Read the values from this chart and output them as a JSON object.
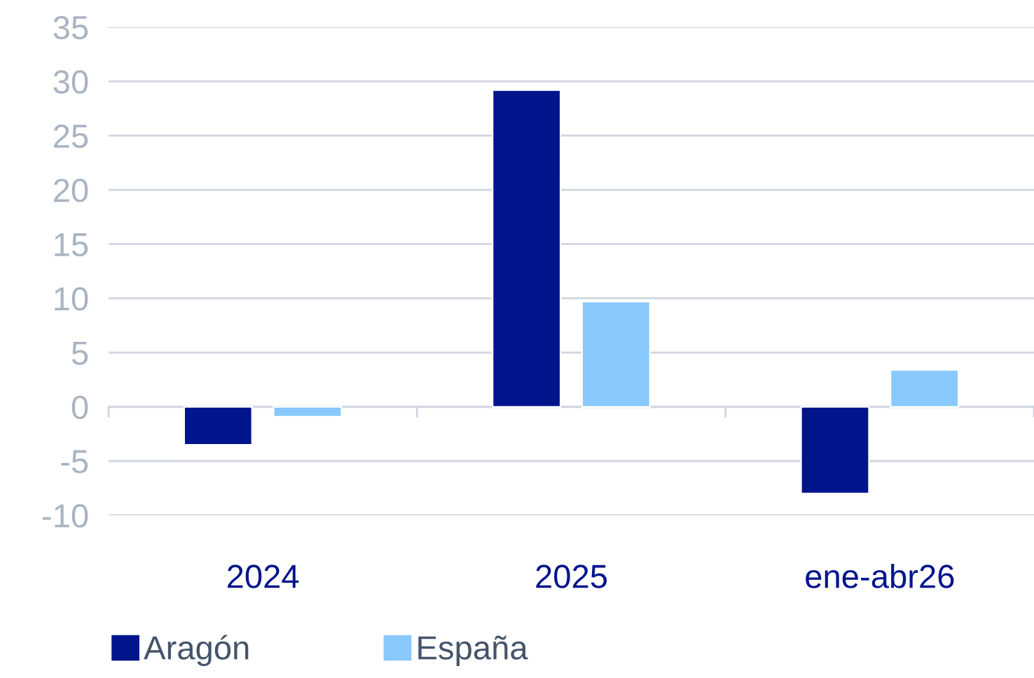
{
  "chart_data": {
    "type": "bar",
    "categories": [
      "2024",
      "2025",
      "ene-abr26"
    ],
    "series": [
      {
        "name": "Aragón",
        "color": "#00148c",
        "values": [
          -3.5,
          29.2,
          -8.0
        ]
      },
      {
        "name": "España",
        "color": "#88c8fc",
        "values": [
          -0.9,
          9.7,
          3.4
        ]
      }
    ],
    "ylim": [
      -10,
      35
    ],
    "yticks": [
      {
        "value": -10,
        "label": "-10"
      },
      {
        "value": -5,
        "label": "-5"
      },
      0,
      5,
      10,
      15,
      20,
      25,
      30,
      35
    ],
    "grid": "y",
    "legend": "bottom left"
  }
}
